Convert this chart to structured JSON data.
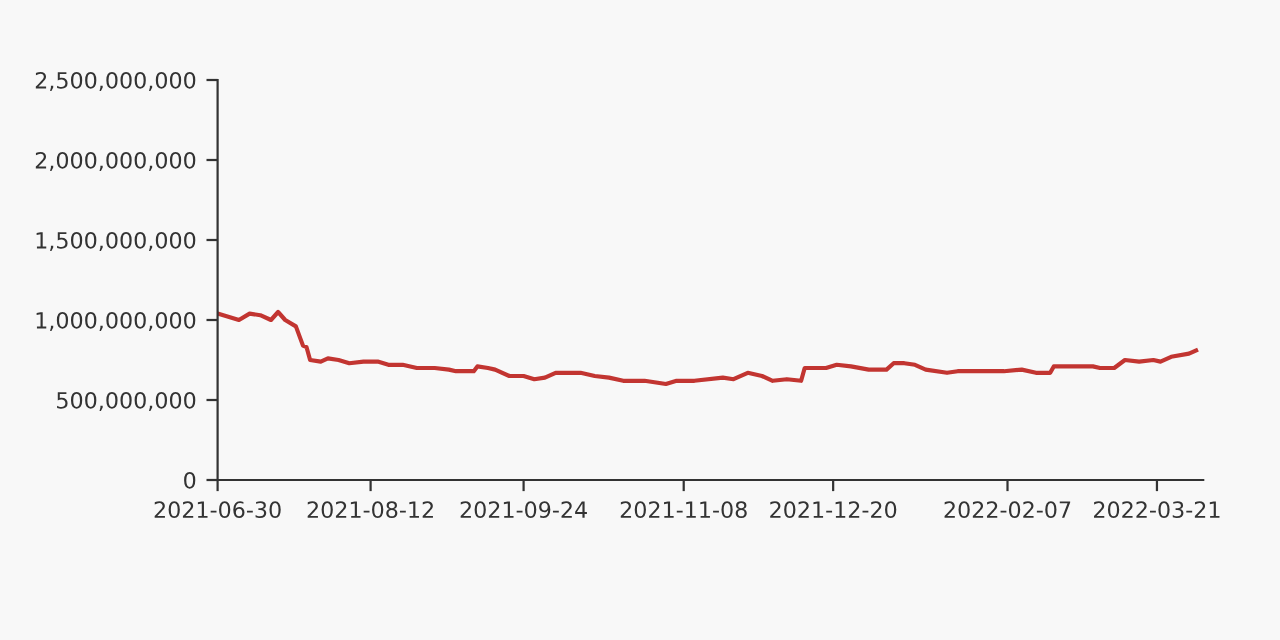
{
  "chart_data": {
    "type": "line",
    "x": [
      "2021-06-30",
      "2021-07-06",
      "2021-07-09",
      "2021-07-12",
      "2021-07-15",
      "2021-07-17",
      "2021-07-19",
      "2021-07-22",
      "2021-07-24",
      "2021-07-25",
      "2021-07-26",
      "2021-07-29",
      "2021-07-31",
      "2021-08-03",
      "2021-08-06",
      "2021-08-10",
      "2021-08-14",
      "2021-08-17",
      "2021-08-21",
      "2021-08-25",
      "2021-08-30",
      "2021-09-03",
      "2021-09-05",
      "2021-09-10",
      "2021-09-11",
      "2021-09-14",
      "2021-09-16",
      "2021-09-20",
      "2021-09-24",
      "2021-09-27",
      "2021-09-30",
      "2021-10-03",
      "2021-10-10",
      "2021-10-14",
      "2021-10-18",
      "2021-10-22",
      "2021-10-28",
      "2021-11-03",
      "2021-11-06",
      "2021-11-11",
      "2021-11-19",
      "2021-11-22",
      "2021-11-26",
      "2021-11-30",
      "2021-12-03",
      "2021-12-07",
      "2021-12-11",
      "2021-12-12",
      "2021-12-16",
      "2021-12-18",
      "2021-12-21",
      "2021-12-25",
      "2021-12-30",
      "2022-01-04",
      "2022-01-06",
      "2022-01-09",
      "2022-01-12",
      "2022-01-15",
      "2022-01-21",
      "2022-01-24",
      "2022-02-06",
      "2022-02-11",
      "2022-02-15",
      "2022-02-19",
      "2022-02-20",
      "2022-03-03",
      "2022-03-05",
      "2022-03-09",
      "2022-03-12",
      "2022-03-16",
      "2022-03-20",
      "2022-03-22",
      "2022-03-25",
      "2022-03-30",
      "2022-04-01"
    ],
    "series": [
      {
        "color": "#c23531",
        "values": [
          1040000000,
          1000000000,
          1040000000,
          1030000000,
          1000000000,
          1050000000,
          1000000000,
          960000000,
          840000000,
          830000000,
          750000000,
          740000000,
          760000000,
          750000000,
          730000000,
          740000000,
          740000000,
          720000000,
          720000000,
          700000000,
          700000000,
          690000000,
          680000000,
          680000000,
          710000000,
          700000000,
          690000000,
          650000000,
          650000000,
          630000000,
          640000000,
          670000000,
          670000000,
          650000000,
          640000000,
          620000000,
          620000000,
          600000000,
          620000000,
          620000000,
          640000000,
          630000000,
          670000000,
          650000000,
          620000000,
          630000000,
          620000000,
          700000000,
          700000000,
          700000000,
          720000000,
          710000000,
          690000000,
          690000000,
          730000000,
          730000000,
          720000000,
          690000000,
          670000000,
          680000000,
          680000000,
          690000000,
          670000000,
          670000000,
          710000000,
          710000000,
          700000000,
          700000000,
          750000000,
          740000000,
          750000000,
          740000000,
          770000000,
          790000000,
          810000000
        ]
      }
    ],
    "xlim": [
      "2021-06-30",
      "2022-04-03"
    ],
    "xticks": [
      "2021-06-30",
      "2021-08-12",
      "2021-09-24",
      "2021-11-08",
      "2021-12-20",
      "2022-02-07",
      "2022-03-21"
    ],
    "ylim": [
      0,
      2500000000
    ],
    "yticks": [
      0,
      {
        "value": 500000000,
        "label": "500,000,000"
      },
      {
        "value": 1000000000,
        "label": "1,000,000,000"
      },
      {
        "value": 1500000000,
        "label": "1,500,000,000"
      },
      {
        "value": 2000000000,
        "label": "2,000,000,000"
      },
      {
        "value": 2500000000,
        "label": "2,500,000,000"
      }
    ],
    "grid": false,
    "legend": false,
    "marker": "none",
    "line_style": "solid"
  }
}
